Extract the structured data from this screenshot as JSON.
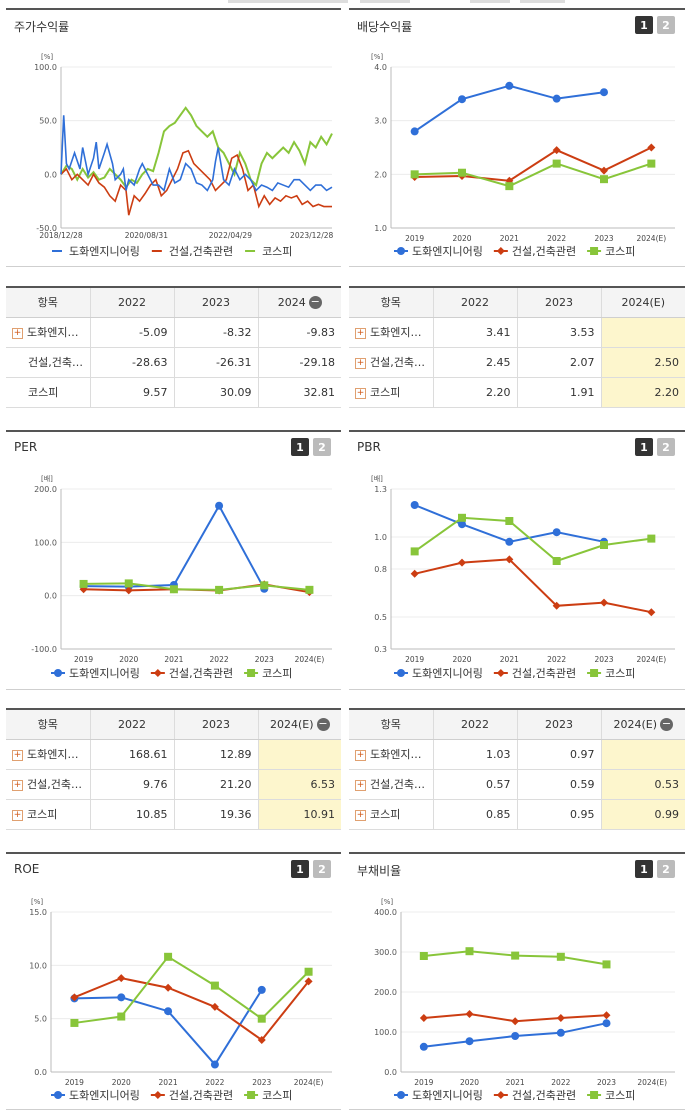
{
  "colors": {
    "company": "#2f6fd8",
    "industry": "#cc3d12",
    "kospi": "#88c53a"
  },
  "panels": {
    "returns": {
      "title": "주가수익률",
      "chart_data": {
        "type": "line",
        "unit": "[%]",
        "ylim": [
          -50,
          100
        ],
        "yticks": [
          "100.0",
          "50.0",
          "0.0",
          "-50.0"
        ],
        "xticks": [
          "2018/12/28",
          "2020/08/31",
          "2022/04/29",
          "2023/12/28"
        ],
        "xrange": [
          0,
          100
        ],
        "xtickpos": [
          0,
          31.5,
          62.5,
          92.5
        ],
        "series": [
          {
            "name": "도화엔지니어링",
            "x": [
              0,
              1,
              2,
              3,
              5,
              7,
              8,
              10,
              12,
              13,
              14,
              16,
              17,
              19,
              20,
              22,
              23,
              24,
              25,
              27,
              29,
              30,
              32,
              34,
              36,
              38,
              40,
              42,
              44,
              46,
              48,
              50,
              52,
              54,
              56,
              57,
              58,
              60,
              62,
              64,
              66,
              68,
              70,
              71,
              72,
              74,
              76,
              78,
              80,
              82,
              84,
              86,
              88,
              90,
              92,
              94,
              96,
              98,
              100
            ],
            "y": [
              0,
              55,
              10,
              5,
              20,
              5,
              25,
              0,
              15,
              30,
              5,
              20,
              28,
              10,
              -5,
              0,
              5,
              -15,
              -5,
              -10,
              5,
              10,
              0,
              -10,
              -10,
              -15,
              5,
              -8,
              -5,
              10,
              5,
              -8,
              -10,
              -15,
              -5,
              12,
              25,
              -5,
              -10,
              5,
              -5,
              0,
              -5,
              -10,
              -15,
              -10,
              -12,
              -15,
              -8,
              -10,
              -12,
              -5,
              -5,
              -10,
              -15,
              -10,
              -10,
              -15,
              -12
            ]
          },
          {
            "name": "건설,건축관련",
            "x": [
              0,
              2,
              4,
              6,
              8,
              10,
              12,
              14,
              16,
              18,
              20,
              22,
              24,
              25,
              27,
              29,
              31,
              33,
              35,
              37,
              39,
              41,
              43,
              45,
              47,
              49,
              51,
              53,
              55,
              57,
              59,
              61,
              63,
              65,
              67,
              69,
              71,
              73,
              75,
              77,
              79,
              81,
              83,
              85,
              87,
              89,
              91,
              93,
              95,
              97,
              100
            ],
            "y": [
              0,
              5,
              -5,
              0,
              -5,
              -10,
              0,
              -8,
              -12,
              -20,
              -25,
              -10,
              -15,
              -38,
              -20,
              -25,
              -18,
              -10,
              -5,
              -20,
              -15,
              -5,
              5,
              20,
              22,
              10,
              5,
              0,
              -5,
              -15,
              -10,
              -5,
              15,
              18,
              5,
              -15,
              -10,
              -30,
              -20,
              -28,
              -22,
              -25,
              -20,
              -22,
              -20,
              -28,
              -25,
              -30,
              -28,
              -30,
              -30
            ]
          },
          {
            "name": "코스피",
            "x": [
              0,
              2,
              4,
              6,
              8,
              10,
              12,
              14,
              16,
              18,
              20,
              22,
              24,
              26,
              28,
              30,
              32,
              34,
              36,
              38,
              40,
              42,
              44,
              46,
              48,
              50,
              52,
              54,
              56,
              58,
              60,
              62,
              64,
              66,
              68,
              70,
              72,
              74,
              76,
              78,
              80,
              82,
              84,
              86,
              88,
              90,
              92,
              94,
              96,
              98,
              100
            ],
            "y": [
              0,
              8,
              5,
              -5,
              5,
              -3,
              2,
              -5,
              -3,
              5,
              0,
              -5,
              -12,
              -5,
              -8,
              0,
              5,
              3,
              20,
              40,
              45,
              48,
              55,
              62,
              55,
              45,
              40,
              35,
              40,
              25,
              20,
              10,
              0,
              20,
              10,
              -5,
              -10,
              10,
              20,
              15,
              20,
              25,
              20,
              30,
              22,
              10,
              30,
              25,
              35,
              28,
              38
            ]
          }
        ]
      },
      "table": {
        "head": [
          "항목",
          "2022",
          "2023",
          "2024"
        ],
        "rows": [
          [
            "도화엔지…",
            "-5.09",
            "-8.32",
            "-9.83"
          ],
          [
            "건설,건축…",
            "-28.63",
            "-26.31",
            "-29.18"
          ],
          [
            "코스피",
            "9.57",
            "30.09",
            "32.81"
          ]
        ]
      }
    },
    "dividend": {
      "title": "배당수익률",
      "btn1": "1",
      "btn2": "2",
      "chart_data": {
        "type": "line",
        "unit": "[%]",
        "ylim": [
          1.0,
          4.0
        ],
        "yticks": [
          "4.0",
          "3.0",
          "2.0",
          "1.0"
        ],
        "categories": [
          "2019",
          "2020",
          "2021",
          "2022",
          "2023",
          "2024(E)"
        ],
        "series": [
          {
            "name": "도화엔지니어링",
            "values": [
              2.8,
              3.4,
              3.65,
              3.41,
              3.53,
              null
            ]
          },
          {
            "name": "건설,건축관련",
            "values": [
              1.95,
              1.97,
              1.88,
              2.45,
              2.07,
              2.5
            ]
          },
          {
            "name": "코스피",
            "values": [
              2.0,
              2.03,
              1.78,
              2.2,
              1.91,
              2.2
            ]
          }
        ]
      },
      "table": {
        "head": [
          "항목",
          "2022",
          "2023",
          "2024(E)"
        ],
        "rows": [
          [
            "도화엔지…",
            "3.41",
            "3.53",
            ""
          ],
          [
            "건설,건축…",
            "2.45",
            "2.07",
            "2.50"
          ],
          [
            "코스피",
            "2.20",
            "1.91",
            "2.20"
          ]
        ]
      }
    },
    "per": {
      "title": "PER",
      "btn1": "1",
      "btn2": "2",
      "chart_data": {
        "type": "line",
        "unit": "[배]",
        "ylim": [
          -100,
          200
        ],
        "yticks": [
          "200.0",
          "100.0",
          "0.0",
          "-100.0"
        ],
        "categories": [
          "2019",
          "2020",
          "2021",
          "2022",
          "2023",
          "2024(E)"
        ],
        "series": [
          {
            "name": "도화엔지니어링",
            "values": [
              18,
              17,
              20,
              168.61,
              12.89,
              null
            ]
          },
          {
            "name": "건설,건축관련",
            "values": [
              12,
              10,
              12,
              9.76,
              21.2,
              6.53
            ]
          },
          {
            "name": "코스피",
            "values": [
              22,
              23,
              12,
              10.85,
              19.36,
              10.91
            ]
          }
        ]
      },
      "table": {
        "head": [
          "항목",
          "2022",
          "2023",
          "2024(E)"
        ],
        "rows": [
          [
            "도화엔지…",
            "168.61",
            "12.89",
            ""
          ],
          [
            "건설,건축…",
            "9.76",
            "21.20",
            "6.53"
          ],
          [
            "코스피",
            "10.85",
            "19.36",
            "10.91"
          ]
        ]
      }
    },
    "pbr": {
      "title": "PBR",
      "btn1": "1",
      "btn2": "2",
      "chart_data": {
        "type": "line",
        "unit": "[배]",
        "ylim": [
          0.3,
          1.3
        ],
        "yticks": [
          "1.3",
          "1.0",
          "0.8",
          "0.5",
          "0.3"
        ],
        "categories": [
          "2019",
          "2020",
          "2021",
          "2022",
          "2023",
          "2024(E)"
        ],
        "series": [
          {
            "name": "도화엔지니어링",
            "values": [
              1.2,
              1.08,
              0.97,
              1.03,
              0.97,
              null
            ]
          },
          {
            "name": "건설,건축관련",
            "values": [
              0.77,
              0.84,
              0.86,
              0.57,
              0.59,
              0.53
            ]
          },
          {
            "name": "코스피",
            "values": [
              0.91,
              1.12,
              1.1,
              0.85,
              0.95,
              0.99
            ]
          }
        ]
      },
      "table": {
        "head": [
          "항목",
          "2022",
          "2023",
          "2024(E)"
        ],
        "rows": [
          [
            "도화엔지…",
            "1.03",
            "0.97",
            ""
          ],
          [
            "건설,건축…",
            "0.57",
            "0.59",
            "0.53"
          ],
          [
            "코스피",
            "0.85",
            "0.95",
            "0.99"
          ]
        ]
      }
    },
    "roe": {
      "title": "ROE",
      "btn1": "1",
      "btn2": "2",
      "chart_data": {
        "type": "line",
        "unit": "[%]",
        "ylim": [
          0,
          15
        ],
        "yticks": [
          "15.0",
          "10.0",
          "5.0",
          "0.0"
        ],
        "categories": [
          "2019",
          "2020",
          "2021",
          "2022",
          "2023",
          "2024(E)"
        ],
        "series": [
          {
            "name": "도화엔지니어링",
            "values": [
              6.9,
              7.0,
              5.7,
              0.7,
              7.7,
              null
            ]
          },
          {
            "name": "건설,건축관련",
            "values": [
              7.0,
              8.8,
              7.9,
              6.1,
              3.0,
              8.5
            ]
          },
          {
            "name": "코스피",
            "values": [
              4.6,
              5.2,
              10.8,
              8.1,
              5.0,
              9.4
            ]
          }
        ]
      }
    },
    "debt": {
      "title": "부채비율",
      "btn1": "1",
      "btn2": "2",
      "chart_data": {
        "type": "line",
        "unit": "[%]",
        "ylim": [
          0,
          400
        ],
        "yticks": [
          "400.0",
          "300.0",
          "200.0",
          "100.0",
          "0.0"
        ],
        "categories": [
          "2019",
          "2020",
          "2021",
          "2022",
          "2023",
          "2024(E)"
        ],
        "series": [
          {
            "name": "도화엔지니어링",
            "values": [
              63,
              77,
              90,
              98,
              122,
              null
            ]
          },
          {
            "name": "건설,건축관련",
            "values": [
              135,
              145,
              127,
              135,
              142,
              null
            ]
          },
          {
            "name": "코스피",
            "values": [
              290,
              302,
              291,
              288,
              269,
              null
            ]
          }
        ]
      }
    }
  }
}
